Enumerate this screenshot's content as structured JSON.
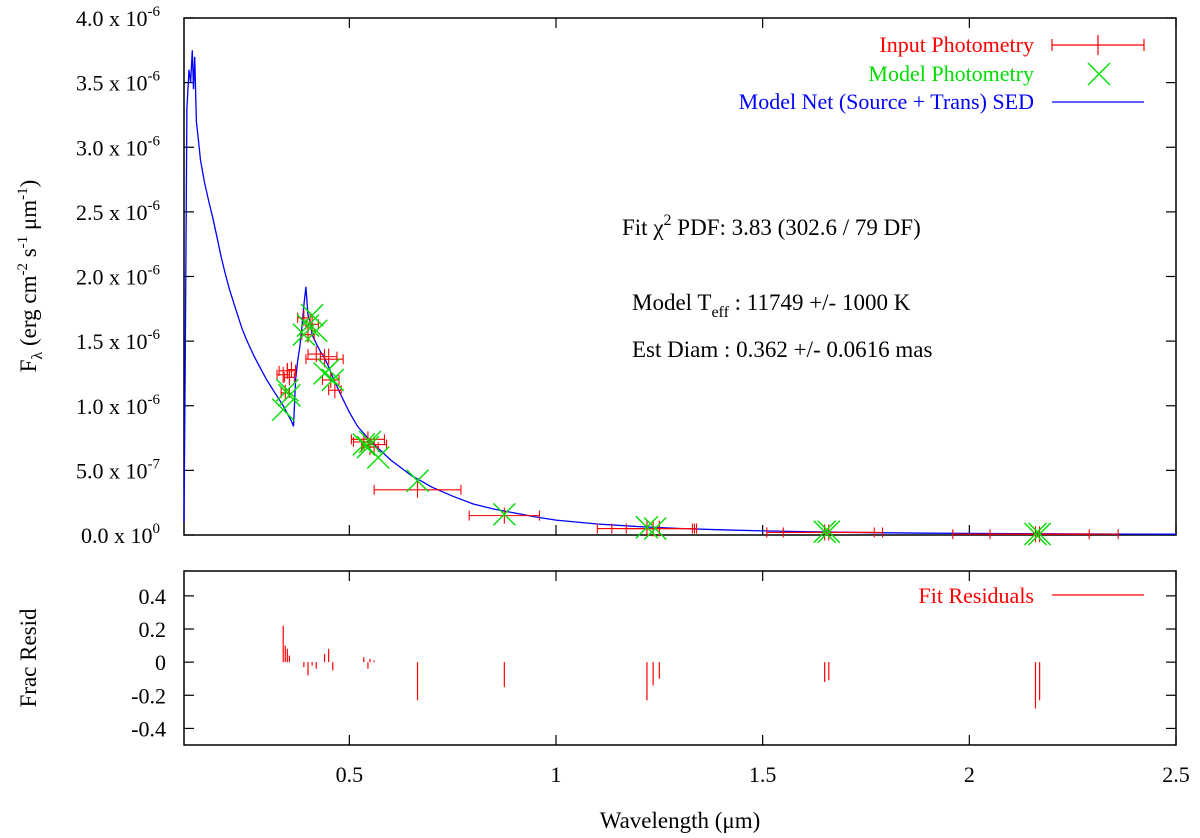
{
  "chart_data": [
    {
      "type": "scatter",
      "panel": "sed",
      "xlabel": "Wavelength (μm)",
      "ylabel": {
        "main": "F",
        "sub": "λ",
        "units_prefix": " (erg cm",
        "exp1": "-2",
        "mid1": " s",
        "exp2": "-1",
        "mid2": " μm",
        "exp3": "-1",
        "suffix": ")"
      },
      "xlim": [
        0.1,
        2.5
      ],
      "ylim": [
        0,
        4e-06
      ],
      "y_ticks": [
        {
          "value": 0.0,
          "mantissa": "0.0 x 10",
          "exp": "0"
        },
        {
          "value": 5e-07,
          "mantissa": "5.0 x 10",
          "exp": "-7"
        },
        {
          "value": 1e-06,
          "mantissa": "1.0 x 10",
          "exp": "-6"
        },
        {
          "value": 1.5e-06,
          "mantissa": "1.5 x 10",
          "exp": "-6"
        },
        {
          "value": 2e-06,
          "mantissa": "2.0 x 10",
          "exp": "-6"
        },
        {
          "value": 2.5e-06,
          "mantissa": "2.5 x 10",
          "exp": "-6"
        },
        {
          "value": 3e-06,
          "mantissa": "3.0 x 10",
          "exp": "-6"
        },
        {
          "value": 3.5e-06,
          "mantissa": "3.5 x 10",
          "exp": "-6"
        },
        {
          "value": 4e-06,
          "mantissa": "4.0 x 10",
          "exp": "-6"
        }
      ],
      "x_ticks": [
        {
          "value": 0.5,
          "label": "0.5"
        },
        {
          "value": 1.0,
          "label": "1"
        },
        {
          "value": 1.5,
          "label": "1.5"
        },
        {
          "value": 2.0,
          "label": "2"
        },
        {
          "value": 2.5,
          "label": "2.5"
        }
      ],
      "legend": {
        "position": "top-right",
        "entries": [
          {
            "label": "Input Photometry",
            "color": "#ff0000",
            "style": "errorbar"
          },
          {
            "label": "Model Photometry",
            "color": "#00dd00",
            "style": "cross"
          },
          {
            "label": "Model Net (Source + Trans) SED",
            "color": "#0000ff",
            "style": "line"
          }
        ]
      },
      "annotations": {
        "chi2": {
          "prefix": "Fit ",
          "chi": "χ",
          "sup": "2",
          "rest": " PDF: 3.83 (302.6 / 79 DF)"
        },
        "teff": {
          "prefix": "Model T",
          "sub": "eff",
          "rest": " : 11749 +/- 1000 K"
        },
        "diam": {
          "text": "Est Diam : 0.362 +/- 0.0616 mas"
        }
      },
      "series": [
        {
          "name": "Model Net (Source + Trans) SED",
          "color": "#0000ff",
          "points": [
            [
              0.1,
              1e-07
            ],
            [
              0.103,
              1.3e-06
            ],
            [
              0.107,
              3.3e-06
            ],
            [
              0.112,
              3.6e-06
            ],
            [
              0.116,
              3.5e-06
            ],
            [
              0.12,
              3.75e-06
            ],
            [
              0.123,
              3.45e-06
            ],
            [
              0.126,
              3.7e-06
            ],
            [
              0.13,
              3.2e-06
            ],
            [
              0.135,
              3.05e-06
            ],
            [
              0.14,
              2.9e-06
            ],
            [
              0.15,
              2.72e-06
            ],
            [
              0.16,
              2.58e-06
            ],
            [
              0.17,
              2.45e-06
            ],
            [
              0.18,
              2.3e-06
            ],
            [
              0.19,
              2.15e-06
            ],
            [
              0.2,
              2.02e-06
            ],
            [
              0.21,
              1.9e-06
            ],
            [
              0.22,
              1.8e-06
            ],
            [
              0.23,
              1.7e-06
            ],
            [
              0.24,
              1.6e-06
            ],
            [
              0.25,
              1.52e-06
            ],
            [
              0.26,
              1.45e-06
            ],
            [
              0.27,
              1.38e-06
            ],
            [
              0.28,
              1.32e-06
            ],
            [
              0.29,
              1.26e-06
            ],
            [
              0.3,
              1.2e-06
            ],
            [
              0.31,
              1.15e-06
            ],
            [
              0.32,
              1.1e-06
            ],
            [
              0.33,
              1.05e-06
            ],
            [
              0.34,
              1e-06
            ],
            [
              0.35,
              9.4e-07
            ],
            [
              0.36,
              8.8e-07
            ],
            [
              0.365,
              8.4e-07
            ],
            [
              0.37,
              1.2e-06
            ],
            [
              0.375,
              1.35e-06
            ],
            [
              0.38,
              1.45e-06
            ],
            [
              0.385,
              1.6e-06
            ],
            [
              0.39,
              1.78e-06
            ],
            [
              0.395,
              1.92e-06
            ],
            [
              0.4,
              1.7e-06
            ],
            [
              0.405,
              1.65e-06
            ],
            [
              0.41,
              1.55e-06
            ],
            [
              0.42,
              1.48e-06
            ],
            [
              0.43,
              1.42e-06
            ],
            [
              0.44,
              1.37e-06
            ],
            [
              0.45,
              1.3e-06
            ],
            [
              0.46,
              1.22e-06
            ],
            [
              0.48,
              1.08e-06
            ],
            [
              0.5,
              9.5e-07
            ],
            [
              0.52,
              8.4e-07
            ],
            [
              0.55,
              7.3e-07
            ],
            [
              0.6,
              5.8e-07
            ],
            [
              0.65,
              4.6e-07
            ],
            [
              0.7,
              3.7e-07
            ],
            [
              0.75,
              3e-07
            ],
            [
              0.8,
              2.4e-07
            ],
            [
              0.85,
              2e-07
            ],
            [
              0.9,
              1.7e-07
            ],
            [
              0.95,
              1.4e-07
            ],
            [
              1.0,
              1.15e-07
            ],
            [
              1.1,
              8.5e-08
            ],
            [
              1.2,
              6.5e-08
            ],
            [
              1.3,
              5e-08
            ],
            [
              1.4,
              4e-08
            ],
            [
              1.5,
              3.2e-08
            ],
            [
              1.6,
              2.6e-08
            ],
            [
              1.7,
              2.1e-08
            ],
            [
              1.8,
              1.7e-08
            ],
            [
              1.9,
              1.4e-08
            ],
            [
              2.0,
              1.2e-08
            ],
            [
              2.2,
              9e-09
            ],
            [
              2.4,
              7e-09
            ],
            [
              2.5,
              6e-09
            ]
          ]
        },
        {
          "name": "Input Photometry",
          "color": "#ff0000",
          "points": [
            {
              "x": 0.34,
              "y": 1.24e-06,
              "xerr": 0.015,
              "yerr": 5e-08
            },
            {
              "x": 0.35,
              "y": 1.27e-06,
              "xerr": 0.02,
              "yerr": 6e-08
            },
            {
              "x": 0.355,
              "y": 1.22e-06,
              "xerr": 0.012,
              "yerr": 5e-08
            },
            {
              "x": 0.345,
              "y": 1.1e-06,
              "xerr": 0.01,
              "yerr": 5e-08
            },
            {
              "x": 0.36,
              "y": 1.28e-06,
              "xerr": 0.01,
              "yerr": 5e-08
            },
            {
              "x": 0.39,
              "y": 1.68e-06,
              "xerr": 0.015,
              "yerr": 6e-08
            },
            {
              "x": 0.4,
              "y": 1.55e-06,
              "xerr": 0.015,
              "yerr": 6e-08
            },
            {
              "x": 0.41,
              "y": 1.63e-06,
              "xerr": 0.015,
              "yerr": 6e-08
            },
            {
              "x": 0.42,
              "y": 1.4e-06,
              "xerr": 0.02,
              "yerr": 6e-08
            },
            {
              "x": 0.44,
              "y": 1.36e-06,
              "xerr": 0.045,
              "yerr": 6e-08
            },
            {
              "x": 0.45,
              "y": 1.38e-06,
              "xerr": 0.02,
              "yerr": 6e-08
            },
            {
              "x": 0.455,
              "y": 1.2e-06,
              "xerr": 0.02,
              "yerr": 5e-08
            },
            {
              "x": 0.465,
              "y": 1.12e-06,
              "xerr": 0.015,
              "yerr": 5e-08
            },
            {
              "x": 0.535,
              "y": 7.2e-07,
              "xerr": 0.025,
              "yerr": 4e-08
            },
            {
              "x": 0.545,
              "y": 7.4e-07,
              "xerr": 0.04,
              "yerr": 4e-08
            },
            {
              "x": 0.55,
              "y": 6.8e-07,
              "xerr": 0.02,
              "yerr": 4e-08
            },
            {
              "x": 0.56,
              "y": 7e-07,
              "xerr": 0.03,
              "yerr": 4e-08
            },
            {
              "x": 0.665,
              "y": 3.5e-07,
              "xerr": 0.105,
              "yerr": 3e-08
            },
            {
              "x": 0.875,
              "y": 1.5e-07,
              "xerr": 0.085,
              "yerr": 2e-08
            },
            {
              "x": 1.22,
              "y": 5e-08,
              "xerr": 0.12,
              "yerr": 1e-08
            },
            {
              "x": 1.235,
              "y": 5e-08,
              "xerr": 0.1,
              "yerr": 1e-08
            },
            {
              "x": 1.25,
              "y": 5e-08,
              "xerr": 0.08,
              "yerr": 1e-08
            },
            {
              "x": 1.65,
              "y": 2e-08,
              "xerr": 0.14,
              "yerr": 5e-09
            },
            {
              "x": 1.66,
              "y": 2e-08,
              "xerr": 0.11,
              "yerr": 5e-09
            },
            {
              "x": 2.16,
              "y": 6e-09,
              "xerr": 0.2,
              "yerr": 3e-09
            },
            {
              "x": 2.17,
              "y": 6e-09,
              "xerr": 0.12,
              "yerr": 3e-09
            }
          ]
        },
        {
          "name": "Model Photometry",
          "color": "#00dd00",
          "points": [
            [
              0.34,
              9.7e-07
            ],
            [
              0.35,
              1.12e-06
            ],
            [
              0.355,
              1.08e-06
            ],
            [
              0.39,
              1.55e-06
            ],
            [
              0.4,
              1.62e-06
            ],
            [
              0.41,
              1.7e-06
            ],
            [
              0.42,
              1.58e-06
            ],
            [
              0.44,
              1.25e-06
            ],
            [
              0.45,
              1.28e-06
            ],
            [
              0.46,
              1.2e-06
            ],
            [
              0.535,
              7e-07
            ],
            [
              0.545,
              6.8e-07
            ],
            [
              0.55,
              7.2e-07
            ],
            [
              0.57,
              6e-07
            ],
            [
              0.665,
              4.2e-07
            ],
            [
              0.875,
              1.6e-07
            ],
            [
              1.22,
              6e-08
            ],
            [
              1.24,
              5e-08
            ],
            [
              1.65,
              2.5e-08
            ],
            [
              1.66,
              2.5e-08
            ],
            [
              2.16,
              8e-09
            ],
            [
              2.17,
              8e-09
            ]
          ]
        }
      ]
    },
    {
      "type": "bar",
      "panel": "residuals",
      "ylabel": "Frac Resid",
      "xlim": [
        0.1,
        2.5
      ],
      "ylim": [
        -0.5,
        0.55
      ],
      "y_ticks": [
        {
          "value": 0.4,
          "label": "0.4"
        },
        {
          "value": 0.2,
          "label": "0.2"
        },
        {
          "value": 0.0,
          "label": "0"
        },
        {
          "value": -0.2,
          "label": "-0.2"
        },
        {
          "value": -0.4,
          "label": "-0.4"
        }
      ],
      "legend": {
        "position": "top-right",
        "label": "Fit Residuals",
        "color": "#ff0000"
      },
      "series": [
        {
          "name": "Fit Residuals",
          "color": "#ff0000",
          "x": [
            0.34,
            0.345,
            0.35,
            0.355,
            0.39,
            0.4,
            0.41,
            0.42,
            0.44,
            0.45,
            0.46,
            0.535,
            0.545,
            0.55,
            0.56,
            0.665,
            0.875,
            1.22,
            1.235,
            1.25,
            1.65,
            1.66,
            2.16,
            2.17
          ],
          "values": [
            0.22,
            0.1,
            0.08,
            0.04,
            -0.03,
            -0.08,
            -0.02,
            -0.04,
            0.05,
            0.08,
            -0.05,
            0.03,
            -0.04,
            0.02,
            0.01,
            -0.23,
            -0.15,
            -0.23,
            -0.14,
            -0.1,
            -0.12,
            -0.11,
            -0.28,
            -0.23
          ]
        }
      ]
    }
  ]
}
